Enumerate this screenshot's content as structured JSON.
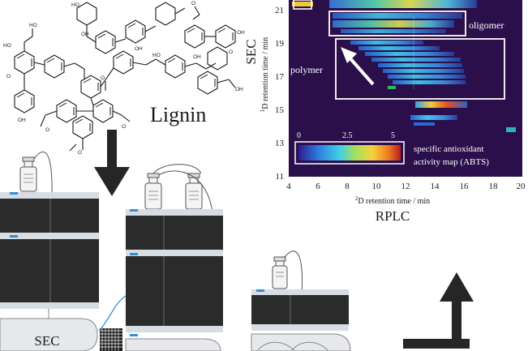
{
  "lignin": {
    "label": "Lignin",
    "colors": {
      "bond": "#1a1a1a",
      "oxygen": "#1a1a1a"
    }
  },
  "heatmap": {
    "x_axis_label": "D retention time / min",
    "x_axis_superscript": "2",
    "x_axis_title": "RPLC",
    "y_axis_label": "D retention time / min",
    "y_axis_superscript": "1",
    "y_axis_title": "SEC",
    "x_ticks": [
      "4",
      "6",
      "8",
      "10",
      "12",
      "14",
      "16",
      "18",
      "20"
    ],
    "y_ticks": [
      "11",
      "13",
      "15",
      "17",
      "19",
      "21"
    ],
    "annotations": {
      "oligomer": "oligomer",
      "polymer": "polymer"
    },
    "colorbar": {
      "ticks": [
        "0",
        "2.5",
        "5"
      ],
      "caption_line1": "specific antioxidant",
      "caption_line2": "activity map (ABTS)"
    },
    "colors": {
      "background": "#2a0f4a",
      "box": "#ffffff"
    }
  },
  "instruments": {
    "sec_label": "SEC",
    "colors": {
      "module": "#2b2b2b",
      "cap": "#d8dde3",
      "led": "#2f8fd6"
    }
  },
  "arrows": {
    "down_color": "#262626",
    "corner_color": "#262626"
  }
}
